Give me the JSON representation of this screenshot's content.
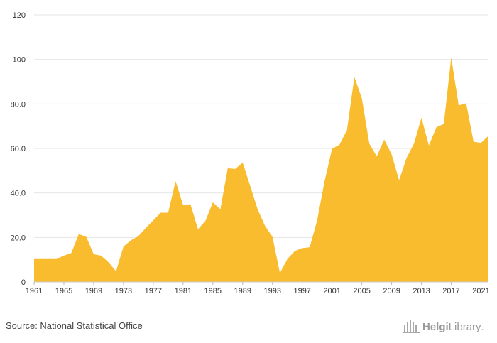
{
  "source_text": "Source: National Statistical Office",
  "logo": {
    "part1": "Helgi",
    "part2": "Library",
    "suffix": ".",
    "icon": "library-building-icon"
  },
  "colors": {
    "area": "#f9bc2e",
    "grid": "#e6e6e6",
    "axis_text": "#333333"
  },
  "chart_data": {
    "type": "area",
    "title": "",
    "xlabel": "",
    "ylabel": "",
    "grid": true,
    "xlim": [
      1961,
      2022
    ],
    "ylim": [
      0,
      120
    ],
    "y_ticks": [
      "0",
      "20.0",
      "40.0",
      "60.0",
      "80.0",
      "100",
      "120"
    ],
    "x_ticks": [
      "1961",
      "1965",
      "1969",
      "1973",
      "1977",
      "1981",
      "1985",
      "1989",
      "1993",
      "1997",
      "2001",
      "2005",
      "2009",
      "2013",
      "2017",
      "2021"
    ],
    "x": [
      1961,
      1962,
      1963,
      1964,
      1965,
      1966,
      1967,
      1968,
      1969,
      1970,
      1971,
      1972,
      1973,
      1974,
      1975,
      1976,
      1977,
      1978,
      1979,
      1980,
      1981,
      1982,
      1983,
      1984,
      1985,
      1986,
      1987,
      1988,
      1989,
      1990,
      1991,
      1992,
      1993,
      1994,
      1995,
      1996,
      1997,
      1998,
      1999,
      2000,
      2001,
      2002,
      2003,
      2004,
      2005,
      2006,
      2007,
      2008,
      2009,
      2010,
      2011,
      2012,
      2013,
      2014,
      2015,
      2016,
      2017,
      2018,
      2019,
      2020,
      2021,
      2022
    ],
    "series": [
      {
        "values": [
          10.3,
          10.3,
          10.3,
          10.3,
          11.8,
          13.0,
          21.5,
          20.3,
          12.5,
          11.8,
          8.8,
          4.8,
          15.9,
          18.7,
          20.6,
          24.3,
          27.7,
          31.1,
          31.1,
          45.3,
          34.6,
          34.9,
          23.7,
          27.4,
          35.8,
          32.6,
          51.1,
          50.8,
          53.6,
          43.3,
          32.7,
          25.2,
          20.3,
          4.0,
          10.3,
          13.9,
          15.2,
          15.6,
          27.7,
          45.3,
          59.8,
          61.7,
          68.2,
          92.1,
          82.5,
          62.2,
          56.4,
          64.0,
          57.3,
          45.7,
          55.7,
          62.2,
          73.8,
          61.3,
          69.5,
          71.0,
          100.9,
          79.3,
          80.3,
          63.0,
          62.5,
          65.7
        ]
      }
    ]
  }
}
